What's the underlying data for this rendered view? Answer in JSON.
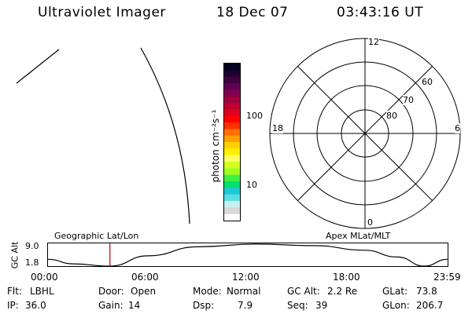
{
  "header": {
    "title": "Ultraviolet Imager",
    "date": "18 Dec 07",
    "time": "03:43:16 UT"
  },
  "colorbar": {
    "unit_label": "photon cm⁻²s⁻¹",
    "ticks": [
      "100",
      "10"
    ],
    "colors": [
      "#ffffff",
      "#d8d8d8",
      "#c8f0f0",
      "#58e0e0",
      "#20c8d8",
      "#00e070",
      "#40f040",
      "#a0ff20",
      "#d0ff20",
      "#ffff60",
      "#fff000",
      "#ffd000",
      "#ffa000",
      "#ff7000",
      "#ff3000",
      "#ff0000",
      "#e00020",
      "#c00030",
      "#a00040",
      "#800050",
      "#600050",
      "#400040",
      "#200030",
      "#000020"
    ]
  },
  "polar_grid": {
    "mlt_labels": {
      "top": "12",
      "right": "6",
      "bottom": "0",
      "left": "18"
    },
    "lat_labels": [
      "60",
      "70",
      "80"
    ]
  },
  "timeline": {
    "y_axis_label": "GC Alt",
    "y_ticks": [
      "9.0",
      "1.8"
    ],
    "left_title": "Geographic Lat/Lon",
    "right_title": "Apex MLat/MLT",
    "time_labels": [
      "00:00",
      "06:00",
      "12:00",
      "18:00",
      "23:59"
    ],
    "marker_hour": 3.72
  },
  "status": {
    "row1": [
      {
        "key": "Flt:",
        "value": "LBHL"
      },
      {
        "key": "Door:",
        "value": "Open"
      },
      {
        "key": "Mode:",
        "value": "Normal"
      },
      {
        "key": "GC Alt:",
        "value": "2.2 Re"
      },
      {
        "key": "GLat:",
        "value": "73.8"
      }
    ],
    "row2": [
      {
        "key": "IP:",
        "value": "36.0"
      },
      {
        "key": "Gain:",
        "value": "14"
      },
      {
        "key": "Dsp:",
        "value": "7.9"
      },
      {
        "key": "Seq:",
        "value": "39"
      },
      {
        "key": "GLon:",
        "value": "206.7"
      }
    ]
  }
}
